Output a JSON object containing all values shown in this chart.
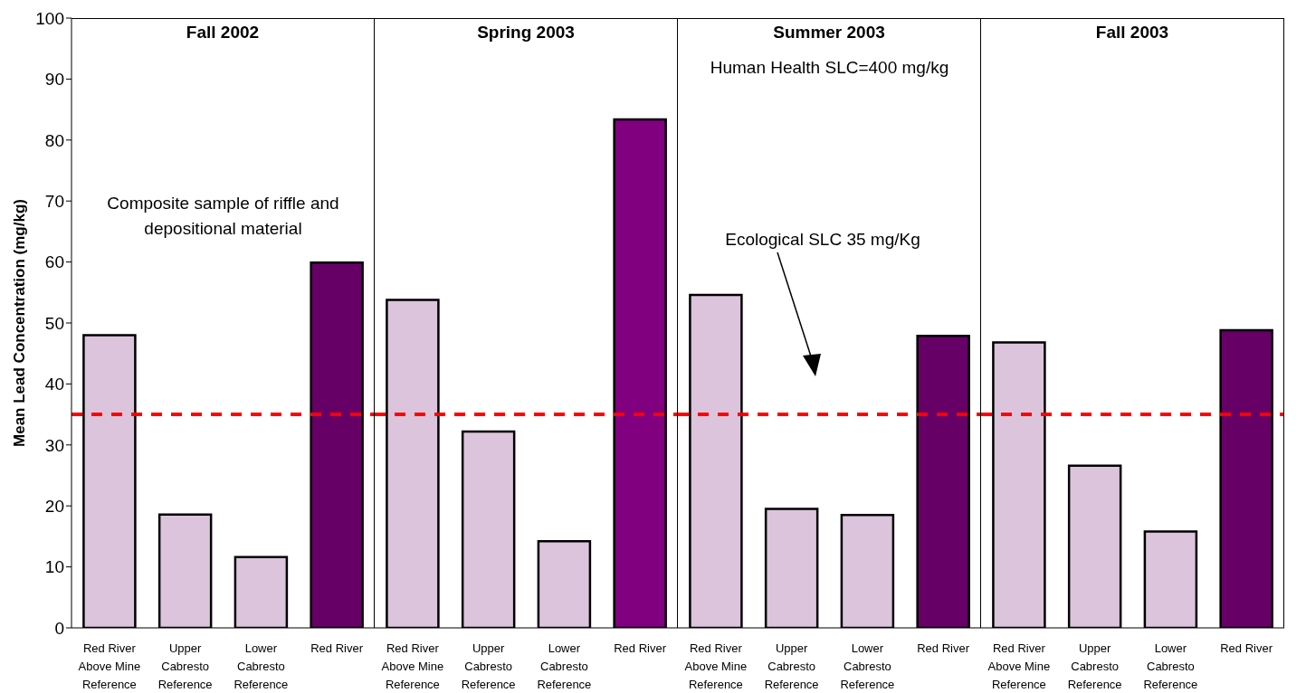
{
  "chart_data": [
    {
      "type": "bar",
      "title": "Fall 2002",
      "ylabel": "Mean Lead Concentration (mg/kg)",
      "categories": [
        "Red River Above Mine Reference",
        "Upper Cabresto Reference",
        "Lower Cabresto Reference",
        "Red River"
      ],
      "values": [
        48.0,
        18.6,
        11.6,
        59.9
      ],
      "colors": [
        "#dcc4dc",
        "#dcc4dc",
        "#dcc4dc",
        "#660066"
      ],
      "ylim": [
        0,
        100
      ],
      "yticks": [
        0,
        10,
        20,
        30,
        40,
        50,
        60,
        70,
        80,
        90,
        100
      ],
      "grid": false,
      "legend": false,
      "annotations": [
        "Composite sample of riffle and depositional material"
      ],
      "ref_lines": [
        {
          "axis": "y",
          "value": 35,
          "color": "#ff0000",
          "line_style": "dashed"
        }
      ]
    },
    {
      "type": "bar",
      "title": "Spring 2003",
      "categories": [
        "Red River Above Mine Reference",
        "Upper Cabresto Reference",
        "Lower Cabresto Reference",
        "Red River"
      ],
      "values": [
        53.8,
        32.2,
        14.2,
        83.4
      ],
      "colors": [
        "#dcc4dc",
        "#dcc4dc",
        "#dcc4dc",
        "#800080"
      ],
      "ylim": [
        0,
        100
      ],
      "tick_labels": "x",
      "grid": false,
      "legend": false,
      "ref_lines": [
        {
          "axis": "y",
          "value": 35,
          "color": "#ff0000",
          "line_style": "dashed"
        }
      ]
    },
    {
      "type": "bar",
      "title": "Summer 2003",
      "categories": [
        "Red River Above Mine Reference",
        "Upper Cabresto Reference",
        "Lower Cabresto Reference",
        "Red River"
      ],
      "values": [
        54.6,
        19.5,
        18.5,
        47.9
      ],
      "colors": [
        "#dcc4dc",
        "#dcc4dc",
        "#dcc4dc",
        "#660066"
      ],
      "ylim": [
        0,
        100
      ],
      "tick_labels": "x",
      "grid": false,
      "legend": false,
      "annotations": [
        "Human Health SLC=400 mg/kg",
        "Ecological SLC 35 mg/Kg"
      ],
      "ref_lines": [
        {
          "axis": "y",
          "value": 35,
          "color": "#ff0000",
          "line_style": "dashed"
        }
      ]
    },
    {
      "type": "bar",
      "title": "Fall 2003",
      "categories": [
        "Red River Above Mine Reference",
        "Upper Cabresto Reference",
        "Lower Cabresto Reference",
        "Red River"
      ],
      "values": [
        46.8,
        26.6,
        15.8,
        48.8
      ],
      "colors": [
        "#dcc4dc",
        "#dcc4dc",
        "#dcc4dc",
        "#660066"
      ],
      "ylim": [
        0,
        100
      ],
      "tick_labels": "x",
      "grid": false,
      "legend": false,
      "ref_lines": [
        {
          "axis": "y",
          "value": 35,
          "color": "#ff0000",
          "line_style": "dashed"
        }
      ]
    }
  ]
}
